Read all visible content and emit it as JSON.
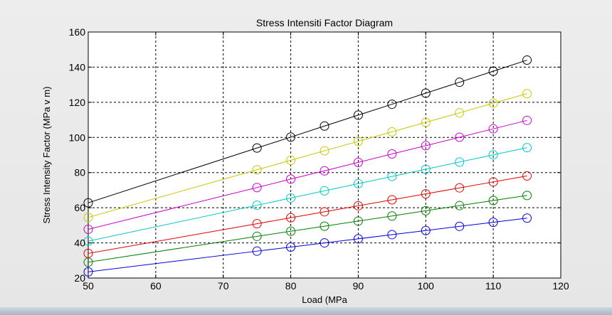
{
  "chart_data": {
    "type": "line",
    "title": "Stress Intensiti Factor Diagram",
    "xlabel": "Load (MPa",
    "ylabel": "Stress Intensity Factor (MPa v m)",
    "xlim": [
      50,
      120
    ],
    "ylim": [
      20,
      160
    ],
    "xticks": [
      50,
      60,
      70,
      80,
      90,
      100,
      110,
      120
    ],
    "yticks": [
      20,
      40,
      60,
      80,
      100,
      120,
      140,
      160
    ],
    "grid": true,
    "marker": "circle",
    "x": [
      50,
      75,
      80,
      85,
      90,
      95,
      100,
      105,
      110,
      115
    ],
    "series": [
      {
        "color": "#000000",
        "values": [
          62.8,
          94.0,
          100.2,
          106.5,
          112.7,
          118.9,
          125.2,
          131.4,
          137.7,
          144.0
        ]
      },
      {
        "color": "#c8c800",
        "values": [
          54.5,
          81.6,
          87.0,
          92.4,
          97.8,
          103.2,
          108.6,
          114.0,
          119.5,
          124.9
        ]
      },
      {
        "color": "#cc00cc",
        "values": [
          47.7,
          71.5,
          76.3,
          81.0,
          85.8,
          90.6,
          95.3,
          100.1,
          104.9,
          109.7
        ]
      },
      {
        "color": "#00c8c8",
        "values": [
          41.0,
          61.4,
          65.5,
          69.6,
          73.7,
          77.8,
          81.9,
          86.0,
          90.1,
          94.2
        ]
      },
      {
        "color": "#e00000",
        "values": [
          34.0,
          50.9,
          54.3,
          57.7,
          61.1,
          64.5,
          67.9,
          71.3,
          74.7,
          78.1
        ]
      },
      {
        "color": "#008000",
        "values": [
          29.0,
          43.7,
          46.6,
          49.5,
          52.4,
          55.3,
          58.3,
          61.2,
          64.1,
          67.0
        ]
      },
      {
        "color": "#0000e0",
        "values": [
          23.5,
          35.3,
          37.6,
          40.0,
          42.3,
          44.7,
          47.0,
          49.4,
          51.7,
          54.1
        ]
      }
    ]
  }
}
